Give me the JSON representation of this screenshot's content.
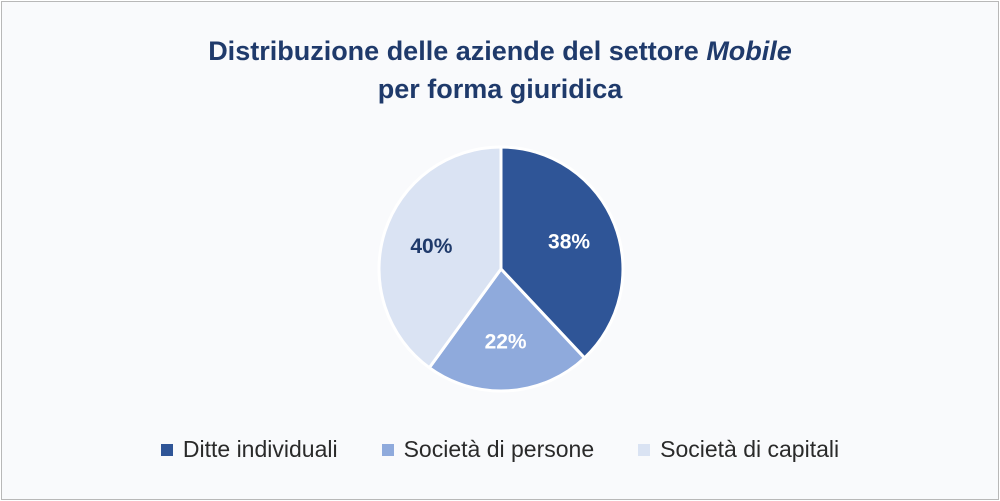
{
  "chart_data": {
    "type": "pie",
    "title_prefix": "Distribuzione delle aziende del settore ",
    "title_emphasis": "Mobile",
    "title_line2": "per forma giuridica",
    "slices": [
      {
        "label": "Ditte individuali",
        "value": 38,
        "value_label": "38%",
        "color": "#2f5597",
        "label_color": "#ffffff"
      },
      {
        "label": "Società di persone",
        "value": 22,
        "value_label": "22%",
        "color": "#8faadc",
        "label_color": "#ffffff"
      },
      {
        "label": "Società di capitali",
        "value": 40,
        "value_label": "40%",
        "color": "#dae3f3",
        "label_color": "#1f3a6b"
      }
    ],
    "legend_position": "bottom"
  }
}
